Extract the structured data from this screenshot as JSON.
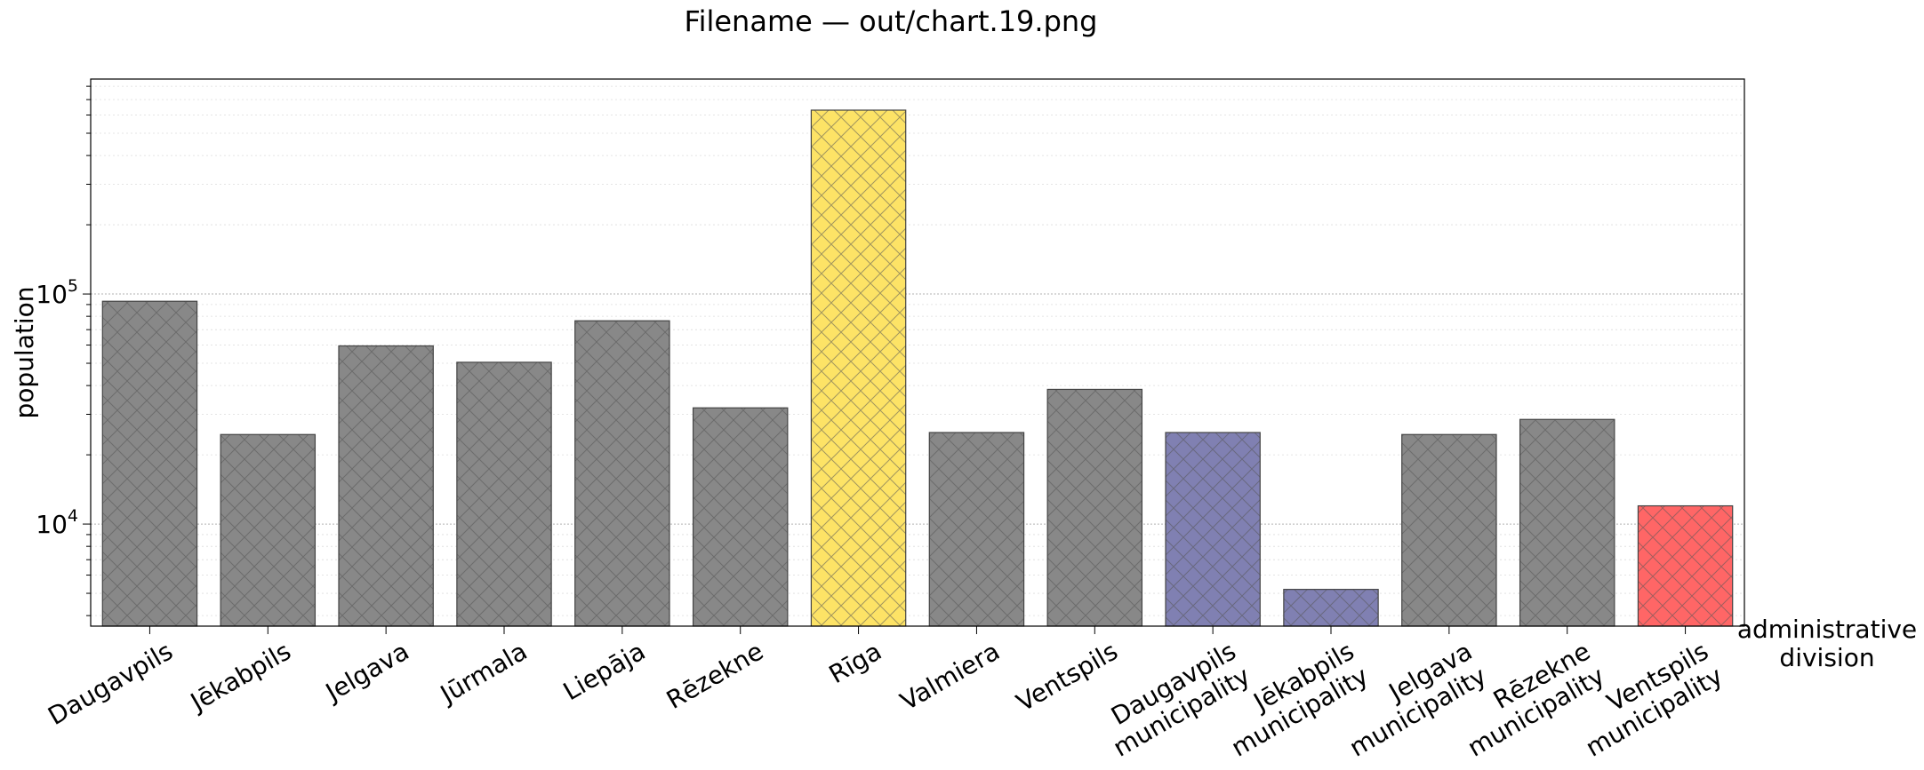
{
  "title": "Filename — out/chart.19.png",
  "chart_data": {
    "type": "bar",
    "title": "Filename — out/chart.19.png",
    "xlabel": [
      "administrative",
      "division"
    ],
    "ylabel": "population",
    "yscale": "log",
    "ylim": [
      3600,
      860000
    ],
    "grid": "y (major and minor, dotted)",
    "hatch": "crosshatch",
    "yticks": [
      {
        "value": 10000,
        "base": "10",
        "exp": "4"
      },
      {
        "value": 100000,
        "base": "10",
        "exp": "5"
      }
    ],
    "categories": [
      [
        "Daugavpils"
      ],
      [
        "Jēkabpils"
      ],
      [
        "Jelgava"
      ],
      [
        "Jūrmala"
      ],
      [
        "Liepāja"
      ],
      [
        "Rēzekne"
      ],
      [
        "Rīga"
      ],
      [
        "Valmiera"
      ],
      [
        "Ventspils"
      ],
      [
        "Daugavpils",
        "municipality"
      ],
      [
        "Jēkabpils",
        "municipality"
      ],
      [
        "Jelgava",
        "municipality"
      ],
      [
        "Rēzekne",
        "municipality"
      ],
      [
        "Ventspils",
        "municipality"
      ]
    ],
    "values": [
      93000,
      24500,
      59500,
      50500,
      76500,
      32000,
      630000,
      25000,
      38500,
      25000,
      5200,
      24500,
      28500,
      12000
    ],
    "colors": [
      "#888888",
      "#888888",
      "#888888",
      "#888888",
      "#888888",
      "#888888",
      "#fde366",
      "#888888",
      "#888888",
      "#8080b2",
      "#8080b2",
      "#888888",
      "#888888",
      "#ff6666"
    ]
  }
}
